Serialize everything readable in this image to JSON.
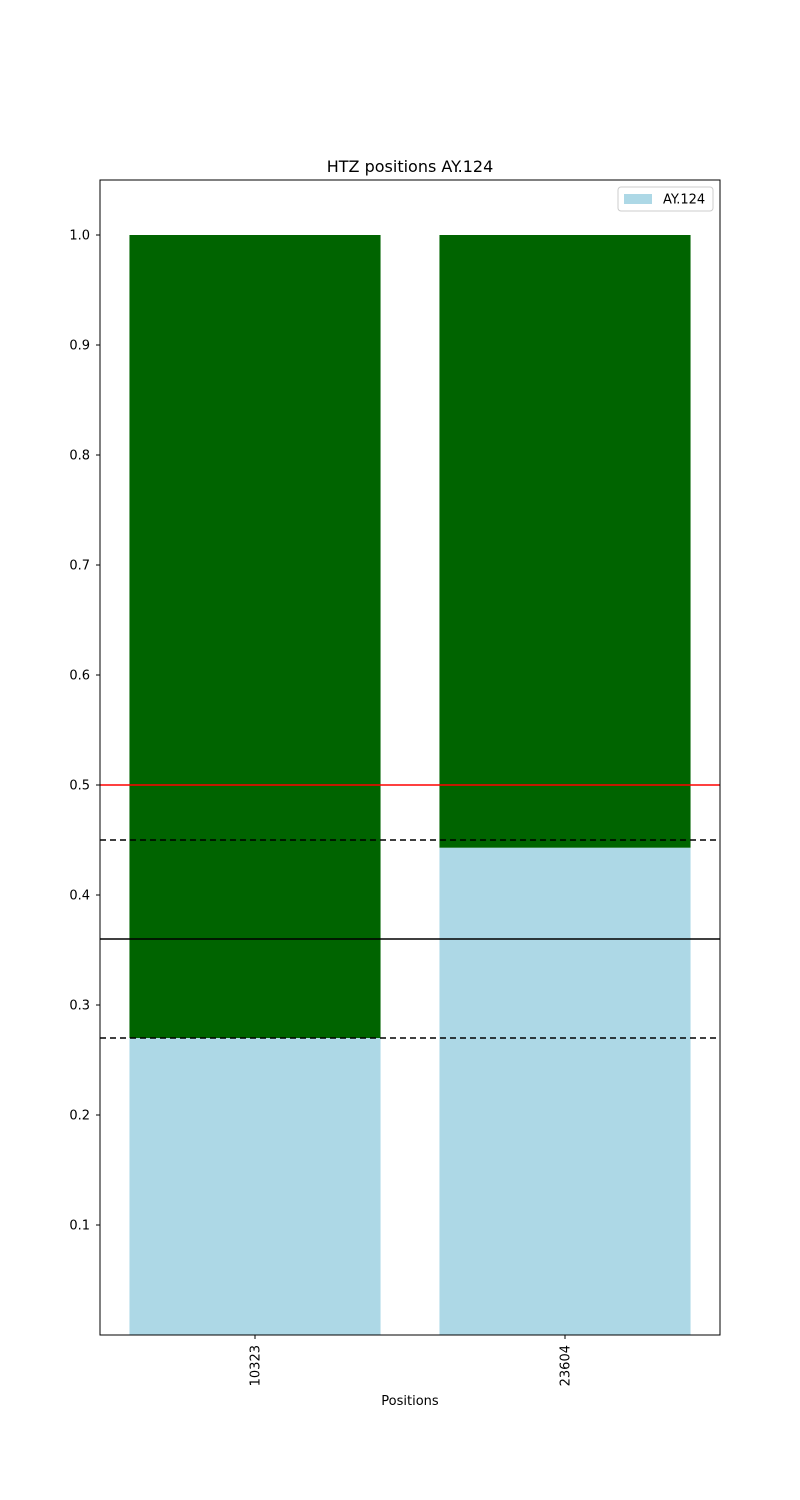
{
  "chart_data": {
    "type": "bar",
    "title": "HTZ positions AY.124",
    "xlabel": "Positions",
    "ylabel": "",
    "categories": [
      "10323",
      "23604"
    ],
    "ylim": [
      0,
      1.05
    ],
    "yticks": [
      0.1,
      0.2,
      0.3,
      0.4,
      0.5,
      0.6,
      0.7,
      0.8,
      0.9,
      1.0
    ],
    "series": [
      {
        "name": "AY.124",
        "color": "#add8e6",
        "values": [
          0.27,
          0.443
        ]
      },
      {
        "color": "#006400",
        "values": [
          0.73,
          0.557
        ]
      }
    ],
    "stacked": true,
    "reference_lines": [
      {
        "y": 0.5,
        "color": "#ff0000",
        "style": "solid"
      },
      {
        "y": 0.45,
        "color": "#000000",
        "style": "dashed"
      },
      {
        "y": 0.36,
        "color": "#000000",
        "style": "solid"
      },
      {
        "y": 0.27,
        "color": "#000000",
        "style": "dashed"
      }
    ],
    "legend": {
      "position": "top-right",
      "entries": [
        "AY.124"
      ]
    },
    "grid": false
  }
}
